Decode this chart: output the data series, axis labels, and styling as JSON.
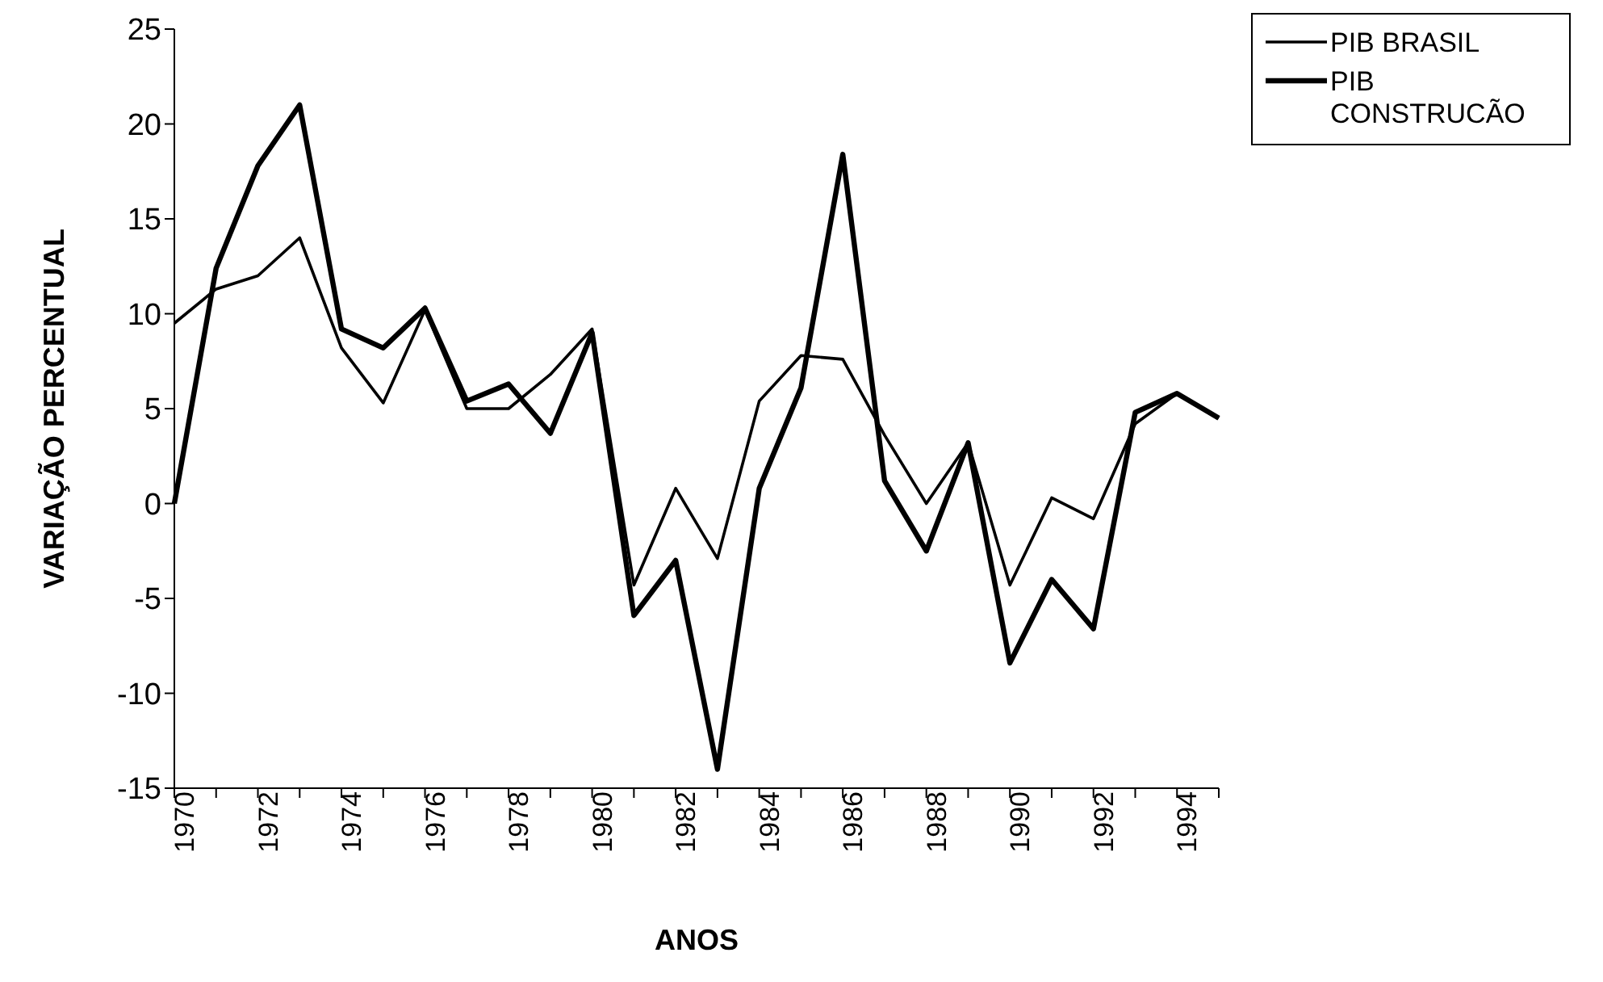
{
  "chart_data": {
    "type": "line",
    "xlabel": "ANOS",
    "ylabel": "VARIAÇÃO PERCENTUAL",
    "categories": [
      "1970",
      null,
      "1972",
      null,
      "1974",
      null,
      "1976",
      null,
      "1978",
      null,
      "1980",
      null,
      "1982",
      null,
      "1984",
      null,
      "1986",
      null,
      "1988",
      null,
      "1990",
      null,
      "1992",
      null,
      "1994",
      null
    ],
    "series": [
      {
        "name": "PIB BRASIL",
        "color": "#000000",
        "values": [
          9.5,
          11.3,
          12,
          14,
          8.2,
          5.3,
          10.2,
          5,
          5,
          6.8,
          9.2,
          -4.3,
          0.8,
          -2.9,
          5.4,
          7.8,
          7.6,
          3.6,
          0,
          3.2,
          -4.3,
          0.3,
          -0.8,
          4.2,
          5.8,
          4.5
        ]
      },
      {
        "name": "PIB CONSTRUCÃO",
        "color": "#000000",
        "values": [
          0,
          12.4,
          17.8,
          21,
          9.2,
          8.2,
          10.3,
          5.4,
          6.3,
          3.7,
          9,
          -5.9,
          -3,
          -14,
          0.8,
          6.1,
          18.4,
          1.2,
          -2.5,
          3.2,
          -8.4,
          -4,
          -6.6,
          4.8,
          5.8,
          4.5
        ]
      }
    ],
    "ylim": [
      -15,
      25
    ],
    "yticks": [
      -15,
      -10,
      -5,
      0,
      5,
      10,
      15,
      20,
      25
    ],
    "grid": false,
    "legend": "top right",
    "marker": "none",
    "line_style": "solid"
  }
}
